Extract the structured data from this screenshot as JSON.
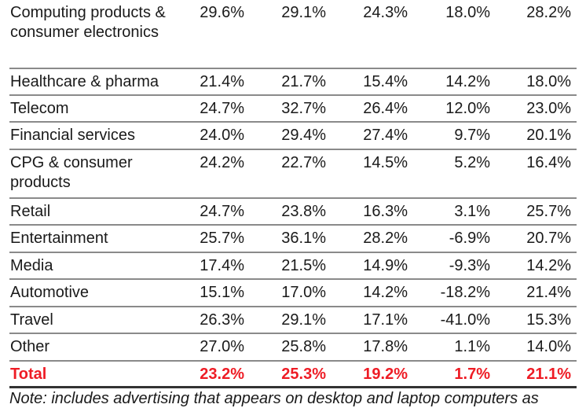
{
  "rows": [
    {
      "label": "Computing products & consumer electronics",
      "values": [
        "29.6%",
        "29.1%",
        "24.3%",
        "18.0%",
        "28.2%"
      ]
    },
    {
      "label": "Healthcare & pharma",
      "values": [
        "21.4%",
        "21.7%",
        "15.4%",
        "14.2%",
        "18.0%"
      ]
    },
    {
      "label": "Telecom",
      "values": [
        "24.7%",
        "32.7%",
        "26.4%",
        "12.0%",
        "23.0%"
      ]
    },
    {
      "label": "Financial services",
      "values": [
        "24.0%",
        "29.4%",
        "27.4%",
        "9.7%",
        "20.1%"
      ]
    },
    {
      "label": "CPG & consumer products",
      "values": [
        "24.2%",
        "22.7%",
        "14.5%",
        "5.2%",
        "16.4%"
      ]
    },
    {
      "label": "Retail",
      "values": [
        "24.7%",
        "23.8%",
        "16.3%",
        "3.1%",
        "25.7%"
      ]
    },
    {
      "label": "Entertainment",
      "values": [
        "25.7%",
        "36.1%",
        "28.2%",
        "-6.9%",
        "20.7%"
      ]
    },
    {
      "label": "Media",
      "values": [
        "17.4%",
        "21.5%",
        "14.9%",
        "-9.3%",
        "14.2%"
      ]
    },
    {
      "label": "Automotive",
      "values": [
        "15.1%",
        "17.0%",
        "14.2%",
        "-18.2%",
        "21.4%"
      ]
    },
    {
      "label": "Travel",
      "values": [
        "26.3%",
        "29.1%",
        "17.1%",
        "-41.0%",
        "15.3%"
      ]
    },
    {
      "label": "Other",
      "values": [
        "27.0%",
        "25.8%",
        "17.8%",
        "1.1%",
        "14.0%"
      ]
    },
    {
      "label": "Total",
      "values": [
        "23.2%",
        "25.3%",
        "19.2%",
        "1.7%",
        "21.1%"
      ],
      "total": true
    }
  ],
  "note": "Note: includes advertising that appears on desktop and laptop computers as",
  "colors": {
    "total": "#ee1c25",
    "rule": "#8a8a8a"
  }
}
